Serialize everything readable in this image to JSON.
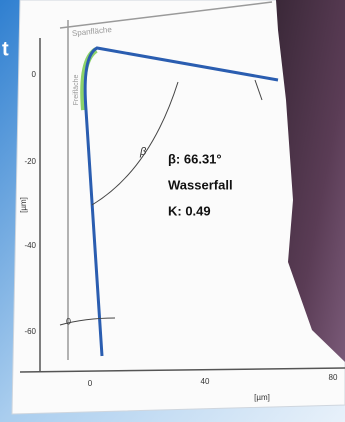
{
  "banner_text": "t",
  "chart": {
    "rake_face_label": "Spanfläche",
    "flank_face_label": "Freifläche",
    "y_ticks": [
      0,
      -20,
      -40,
      -60
    ],
    "y_unit": "[µm]",
    "x_ticks": [
      0,
      40,
      80
    ],
    "x_unit": "[µm]",
    "arc_symbol": "β",
    "angle_label": "β: 66.31°",
    "profile_type": "Wasserfall",
    "k_label": "K: 0.49",
    "small_label": "0"
  }
}
